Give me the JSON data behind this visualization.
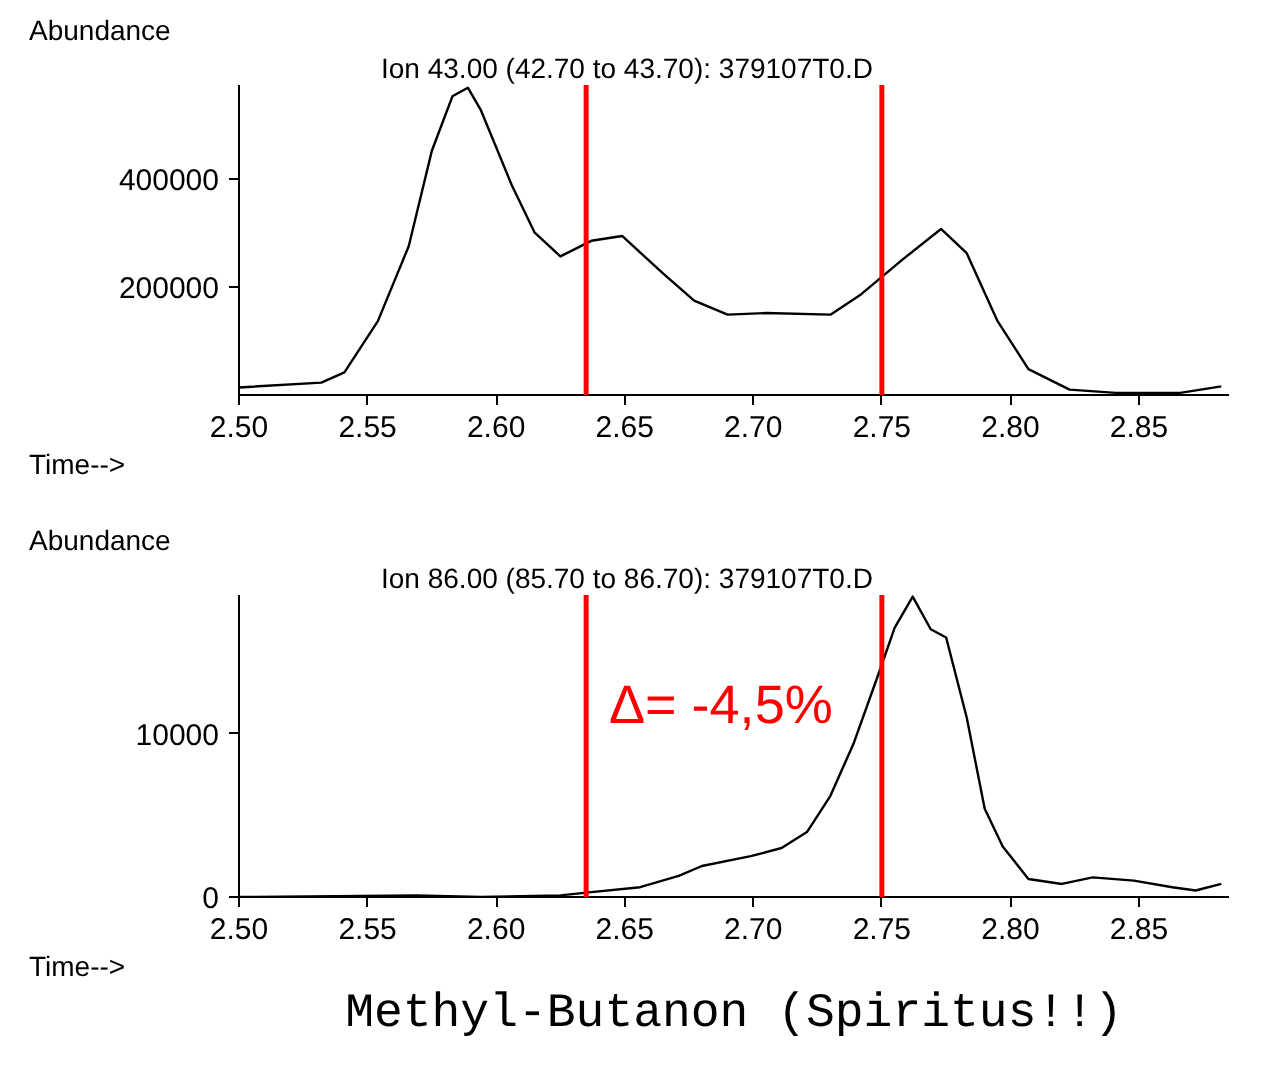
{
  "chart_data": [
    {
      "type": "line",
      "title": "Ion  43.00 (42.70 to 43.70): 379107T0.D",
      "xlabel": "Time-->",
      "ylabel": "Abundance",
      "x": [
        2.5,
        2.532,
        2.541,
        2.554,
        2.566,
        2.575,
        2.583,
        2.589,
        2.594,
        2.606,
        2.615,
        2.625,
        2.637,
        2.649,
        2.665,
        2.677,
        2.69,
        2.705,
        2.73,
        2.742,
        2.758,
        2.773,
        2.783,
        2.795,
        2.807,
        2.823,
        2.841,
        2.866,
        2.882
      ],
      "series": [
        {
          "color": "#000000",
          "values": [
            14000,
            23000,
            42000,
            137000,
            276000,
            453000,
            554000,
            570000,
            529000,
            390000,
            301000,
            257000,
            286000,
            295000,
            225000,
            175000,
            149000,
            152000,
            149000,
            187000,
            251000,
            308000,
            263000,
            137000,
            48000,
            10000,
            4000,
            4000,
            16000
          ]
        }
      ],
      "xlim": [
        2.5,
        2.885
      ],
      "ylim": [
        0,
        575000
      ],
      "xticks": [
        {
          "value": 2.5,
          "label": "2.50"
        },
        {
          "value": 2.55,
          "label": "2.55"
        },
        {
          "value": 2.6,
          "label": "2.60"
        },
        {
          "value": 2.65,
          "label": "2.65"
        },
        {
          "value": 2.7,
          "label": "2.70"
        },
        {
          "value": 2.75,
          "label": "2.75"
        },
        {
          "value": 2.8,
          "label": "2.80"
        },
        {
          "value": 2.85,
          "label": "2.85"
        }
      ],
      "yticks": [
        200000,
        400000
      ],
      "ref_lines": [
        {
          "axis": "x",
          "value": 2.635,
          "color": "#ff0000"
        },
        {
          "axis": "x",
          "value": 2.75,
          "color": "#ff0000"
        }
      ],
      "grid": false
    },
    {
      "type": "line",
      "title": "Ion  86.00 (85.70 to 86.70): 379107T0.D",
      "xlabel": "Time-->",
      "ylabel": "Abundance",
      "x": [
        2.5,
        2.569,
        2.594,
        2.625,
        2.637,
        2.656,
        2.671,
        2.68,
        2.699,
        2.711,
        2.721,
        2.73,
        2.739,
        2.749,
        2.755,
        2.762,
        2.769,
        2.775,
        2.783,
        2.79,
        2.797,
        2.807,
        2.82,
        2.832,
        2.848,
        2.863,
        2.872,
        2.882
      ],
      "series": [
        {
          "color": "#000000",
          "values": [
            0,
            100,
            0,
            100,
            300,
            600,
            1300,
            1900,
            2500,
            3000,
            4000,
            6200,
            9400,
            13800,
            16500,
            18400,
            16400,
            15900,
            11000,
            5400,
            3100,
            1100,
            800,
            1200,
            1000,
            600,
            400,
            800
          ]
        }
      ],
      "xlim": [
        2.5,
        2.885
      ],
      "ylim": [
        0,
        18500
      ],
      "xticks": [
        {
          "value": 2.5,
          "label": "2.50"
        },
        {
          "value": 2.55,
          "label": "2.55"
        },
        {
          "value": 2.6,
          "label": "2.60"
        },
        {
          "value": 2.65,
          "label": "2.65"
        },
        {
          "value": 2.7,
          "label": "2.70"
        },
        {
          "value": 2.75,
          "label": "2.75"
        },
        {
          "value": 2.8,
          "label": "2.80"
        },
        {
          "value": 2.85,
          "label": "2.85"
        }
      ],
      "yticks": [
        0,
        10000
      ],
      "ref_lines": [
        {
          "axis": "x",
          "value": 2.635,
          "color": "#ff0000"
        },
        {
          "axis": "x",
          "value": 2.75,
          "color": "#ff0000"
        }
      ],
      "annotations": [
        "Δ= -4,5%",
        "Methyl-Butanon (Spiritus!!)"
      ],
      "grid": false
    }
  ]
}
